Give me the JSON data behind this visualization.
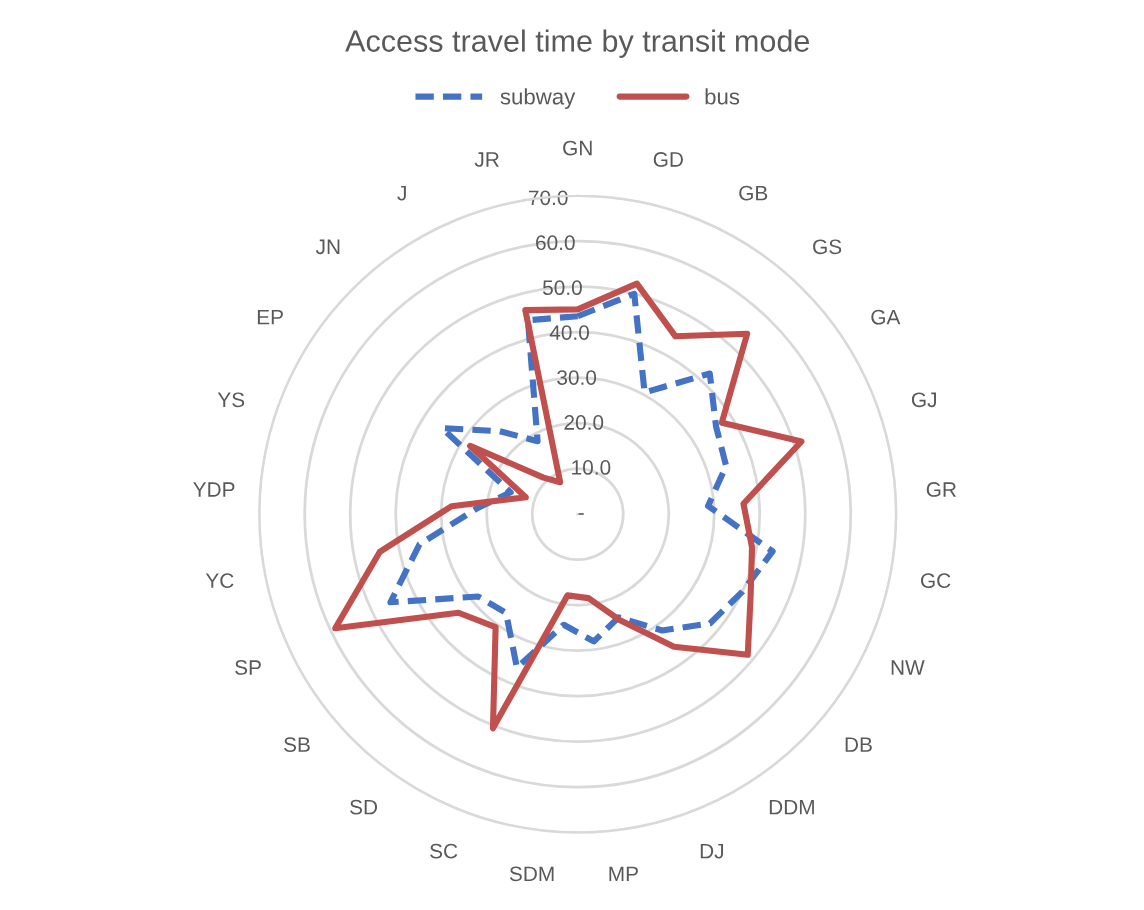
{
  "chart_data": {
    "type": "radar",
    "title": "Access travel time by transit mode",
    "categories": [
      "GN",
      "GD",
      "GB",
      "GS",
      "GA",
      "GJ",
      "GR",
      "GC",
      "NW",
      "DB",
      "DDM",
      "DJ",
      "MP",
      "SDM",
      "SC",
      "SD",
      "SB",
      "SP",
      "YC",
      "YDP",
      "YS",
      "EP",
      "JN",
      "J",
      "JR"
    ],
    "series": [
      {
        "name": "subway",
        "color": "#4472c4",
        "line_style": "dashed",
        "values": [
          43.5,
          50,
          30.5,
          42.4,
          36,
          34.3,
          28.7,
          43.6,
          40,
          37.7,
          31.6,
          24.4,
          28.2,
          24.5,
          36.3,
          26.8,
          28.4,
          45.5,
          35.4,
          22,
          15.5,
          35.3,
          25,
          18.3,
          44
        ]
      },
      {
        "name": "bus",
        "color": "#c0504d",
        "line_style": "solid",
        "values": [
          45,
          52.3,
          44.6,
          54.4,
          37.5,
          51.7,
          36.5,
          39,
          42,
          48.5,
          36,
          25,
          18.6,
          18,
          50.6,
          30.7,
          34,
          58.9,
          44.3,
          27.8,
          12,
          28,
          11,
          8,
          46.3
        ]
      }
    ],
    "ylim": [
      0,
      70
    ],
    "yticks": [
      {
        "value": 0,
        "label": "-"
      },
      {
        "value": 10,
        "label": "10.0"
      },
      {
        "value": 20,
        "label": "20.0"
      },
      {
        "value": 30,
        "label": "30.0"
      },
      {
        "value": 40,
        "label": "40.0"
      },
      {
        "value": 50,
        "label": "50.0"
      },
      {
        "value": 60,
        "label": "60.0"
      },
      {
        "value": 70,
        "label": "70.0"
      }
    ],
    "grid": "y",
    "legend": "top",
    "marker": "none"
  }
}
